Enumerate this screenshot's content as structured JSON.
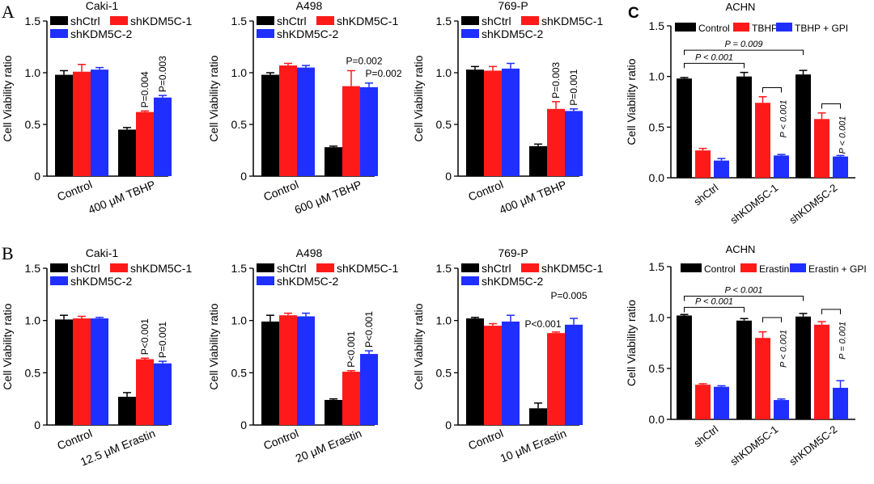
{
  "panel_labels": {
    "a": "A",
    "b": "B",
    "c": "C"
  },
  "colors": {
    "black": "#000000",
    "red": "#ff1a1a",
    "blue": "#1f2fff"
  },
  "chart_data": [
    {
      "type": "bar",
      "panel": "A",
      "title": "Caki-1",
      "legend": [
        "shCtrl",
        "shKDM5C-1",
        "shKDM5C-2"
      ],
      "categories": [
        "Control",
        "400 μM TBHP"
      ],
      "ylabel": "Cell Viability ratio",
      "ylim": [
        0,
        1.5
      ],
      "yticks": [
        "0",
        "0.5",
        "1.0",
        "1.5"
      ],
      "series": [
        {
          "name": "shCtrl",
          "values": [
            0.98,
            0.45
          ],
          "errors": [
            0.04,
            0.02
          ]
        },
        {
          "name": "shKDM5C-1",
          "values": [
            1.01,
            0.62
          ],
          "errors": [
            0.07,
            0.01
          ]
        },
        {
          "name": "shKDM5C-2",
          "values": [
            1.03,
            0.76
          ],
          "errors": [
            0.02,
            0.02
          ]
        }
      ],
      "annotations": [
        {
          "text": "P=0.004",
          "group": 1,
          "bar": 1
        },
        {
          "text": "P=0.003",
          "group": 1,
          "bar": 2
        }
      ]
    },
    {
      "type": "bar",
      "panel": "A",
      "title": "A498",
      "legend": [
        "shCtrl",
        "shKDM5C-1",
        "shKDM5C-2"
      ],
      "categories": [
        "Control",
        "600 μM TBHP"
      ],
      "ylabel": "Cell Viability ratio",
      "ylim": [
        0,
        1.5
      ],
      "yticks": [
        "0",
        "0.5",
        "1.0",
        "1.5"
      ],
      "series": [
        {
          "name": "shCtrl",
          "values": [
            0.98,
            0.28
          ],
          "errors": [
            0.02,
            0.01
          ]
        },
        {
          "name": "shKDM5C-1",
          "values": [
            1.07,
            0.87
          ],
          "errors": [
            0.02,
            0.15
          ]
        },
        {
          "name": "shKDM5C-2",
          "values": [
            1.05,
            0.86
          ],
          "errors": [
            0.02,
            0.04
          ]
        }
      ],
      "annotations": [
        {
          "text": "P=0.002",
          "group": 1,
          "bar": 1
        },
        {
          "text": "P=0.002",
          "group": 1,
          "bar": 2
        }
      ]
    },
    {
      "type": "bar",
      "panel": "A",
      "title": "769-P",
      "legend": [
        "shCtrl",
        "shKDM5C-1",
        "shKDM5C-2"
      ],
      "categories": [
        "Control",
        "400 μM TBHP"
      ],
      "ylabel": "Cell Viability ratio",
      "ylim": [
        0,
        1.5
      ],
      "yticks": [
        "0",
        "0.5",
        "1.0",
        "1.5"
      ],
      "series": [
        {
          "name": "shCtrl",
          "values": [
            1.03,
            0.29
          ],
          "errors": [
            0.03,
            0.02
          ]
        },
        {
          "name": "shKDM5C-1",
          "values": [
            1.02,
            0.65
          ],
          "errors": [
            0.04,
            0.07
          ]
        },
        {
          "name": "shKDM5C-2",
          "values": [
            1.04,
            0.63
          ],
          "errors": [
            0.05,
            0.02
          ]
        }
      ],
      "annotations": [
        {
          "text": "P=0.003",
          "group": 1,
          "bar": 1
        },
        {
          "text": "P=0.001",
          "group": 1,
          "bar": 2
        }
      ]
    },
    {
      "type": "bar",
      "panel": "B",
      "title": "Caki-1",
      "legend": [
        "shCtrl",
        "shKDM5C-1",
        "shKDM5C-2"
      ],
      "categories": [
        "Control",
        "12.5 μM Erastin"
      ],
      "ylabel": "Cell Viability ratio",
      "ylim": [
        0,
        1.5
      ],
      "yticks": [
        "0",
        "0.5",
        "1.0",
        "1.5"
      ],
      "series": [
        {
          "name": "shCtrl",
          "values": [
            1.01,
            0.27
          ],
          "errors": [
            0.04,
            0.04
          ]
        },
        {
          "name": "shKDM5C-1",
          "values": [
            1.02,
            0.63
          ],
          "errors": [
            0.02,
            0.01
          ]
        },
        {
          "name": "shKDM5C-2",
          "values": [
            1.02,
            0.59
          ],
          "errors": [
            0.01,
            0.02
          ]
        }
      ],
      "annotations": [
        {
          "text": "P<0.001",
          "group": 1,
          "bar": 1
        },
        {
          "text": "P=0.001",
          "group": 1,
          "bar": 2
        }
      ]
    },
    {
      "type": "bar",
      "panel": "B",
      "title": "A498",
      "legend": [
        "shCtrl",
        "shKDM5C-1",
        "shKDM5C-2"
      ],
      "categories": [
        "Control",
        "20 μM Erastin"
      ],
      "ylabel": "Cell Viability ratio",
      "ylim": [
        0,
        1.5
      ],
      "yticks": [
        "0",
        "0.5",
        "1.0",
        "1.5"
      ],
      "series": [
        {
          "name": "shCtrl",
          "values": [
            0.99,
            0.24
          ],
          "errors": [
            0.06,
            0.01
          ]
        },
        {
          "name": "shKDM5C-1",
          "values": [
            1.05,
            0.51
          ],
          "errors": [
            0.02,
            0.01
          ]
        },
        {
          "name": "shKDM5C-2",
          "values": [
            1.04,
            0.68
          ],
          "errors": [
            0.03,
            0.03
          ]
        }
      ],
      "annotations": [
        {
          "text": "P<0.001",
          "group": 1,
          "bar": 1
        },
        {
          "text": "P<0.001",
          "group": 1,
          "bar": 2
        }
      ]
    },
    {
      "type": "bar",
      "panel": "B",
      "title": "769-P",
      "legend": [
        "shCtrl",
        "shKDM5C-1",
        "shKDM5C-2"
      ],
      "categories": [
        "Control",
        "10 μM Erastin"
      ],
      "ylabel": "Cell Viability ratio",
      "ylim": [
        0,
        1.5
      ],
      "yticks": [
        "0",
        "0.5",
        "1.0",
        "1.5"
      ],
      "series": [
        {
          "name": "shCtrl",
          "values": [
            1.02,
            0.16
          ],
          "errors": [
            0.01,
            0.05
          ]
        },
        {
          "name": "shKDM5C-1",
          "values": [
            0.95,
            0.88
          ],
          "errors": [
            0.02,
            0.01
          ]
        },
        {
          "name": "shKDM5C-2",
          "values": [
            0.99,
            0.96
          ],
          "errors": [
            0.06,
            0.06
          ]
        }
      ],
      "annotations": [
        {
          "text": "P<0.001",
          "group": 1,
          "bar": 1
        },
        {
          "text": "P=0.005",
          "group": 1,
          "bar": 2
        }
      ]
    },
    {
      "type": "bar",
      "panel": "C",
      "title": "ACHN",
      "legend": [
        "Control",
        "TBHP",
        "TBHP + GPI"
      ],
      "categories": [
        "shCtrl",
        "shKDM5C-1",
        "shKDM5C-2"
      ],
      "ylabel": "Cell Viability ratio",
      "ylim": [
        0,
        1.5
      ],
      "yticks": [
        "0.0",
        "0.5",
        "1.0",
        "1.5"
      ],
      "series": [
        {
          "name": "Control",
          "values": [
            0.98,
            1.0,
            1.02
          ],
          "errors": [
            0.01,
            0.04,
            0.04
          ]
        },
        {
          "name": "TBHP",
          "values": [
            0.27,
            0.74,
            0.58
          ],
          "errors": [
            0.02,
            0.06,
            0.06
          ]
        },
        {
          "name": "TBHP + GPI",
          "values": [
            0.17,
            0.22,
            0.21
          ],
          "errors": [
            0.02,
            0.01,
            0.01
          ]
        }
      ],
      "brackets": [
        {
          "text": "P = 0.009",
          "from": [
            0,
            0
          ],
          "to": [
            2,
            0
          ],
          "level": 1.26
        },
        {
          "text": "P < 0.001",
          "from": [
            0,
            0
          ],
          "to": [
            1,
            0
          ],
          "level": 1.13
        },
        {
          "text": "P < 0.001",
          "from": [
            1,
            1
          ],
          "to": [
            1,
            2
          ],
          "level": 0.89,
          "vertical": true
        },
        {
          "text": "P < 0.001",
          "from": [
            2,
            1
          ],
          "to": [
            2,
            2
          ],
          "level": 0.73,
          "vertical": true
        }
      ]
    },
    {
      "type": "bar",
      "panel": "C",
      "title": "ACHN",
      "legend": [
        "Control",
        "Erastin",
        "Erastin + GPI"
      ],
      "categories": [
        "shCtrl",
        "shKDM5C-1",
        "shKDM5C-2"
      ],
      "ylabel": "Cell Viability ratio",
      "ylim": [
        0,
        1.5
      ],
      "yticks": [
        "0.0",
        "0.5",
        "1.0",
        "1.5"
      ],
      "series": [
        {
          "name": "Control",
          "values": [
            1.02,
            0.97,
            1.01
          ],
          "errors": [
            0.01,
            0.02,
            0.03
          ]
        },
        {
          "name": "Erastin",
          "values": [
            0.34,
            0.8,
            0.93
          ],
          "errors": [
            0.01,
            0.06,
            0.03
          ]
        },
        {
          "name": "Erastin + GPI",
          "values": [
            0.32,
            0.19,
            0.31
          ],
          "errors": [
            0.01,
            0.01,
            0.07
          ]
        }
      ],
      "brackets": [
        {
          "text": "P < 0.001",
          "from": [
            0,
            0
          ],
          "to": [
            2,
            0
          ],
          "level": 1.21
        },
        {
          "text": "P < 0.001",
          "from": [
            0,
            0
          ],
          "to": [
            1,
            0
          ],
          "level": 1.1
        },
        {
          "text": "P < 0.001",
          "from": [
            1,
            1
          ],
          "to": [
            1,
            2
          ],
          "level": 1.0,
          "vertical": true
        },
        {
          "text": "P = 0.001",
          "from": [
            2,
            1
          ],
          "to": [
            2,
            2
          ],
          "level": 1.08,
          "vertical": true
        }
      ]
    }
  ]
}
